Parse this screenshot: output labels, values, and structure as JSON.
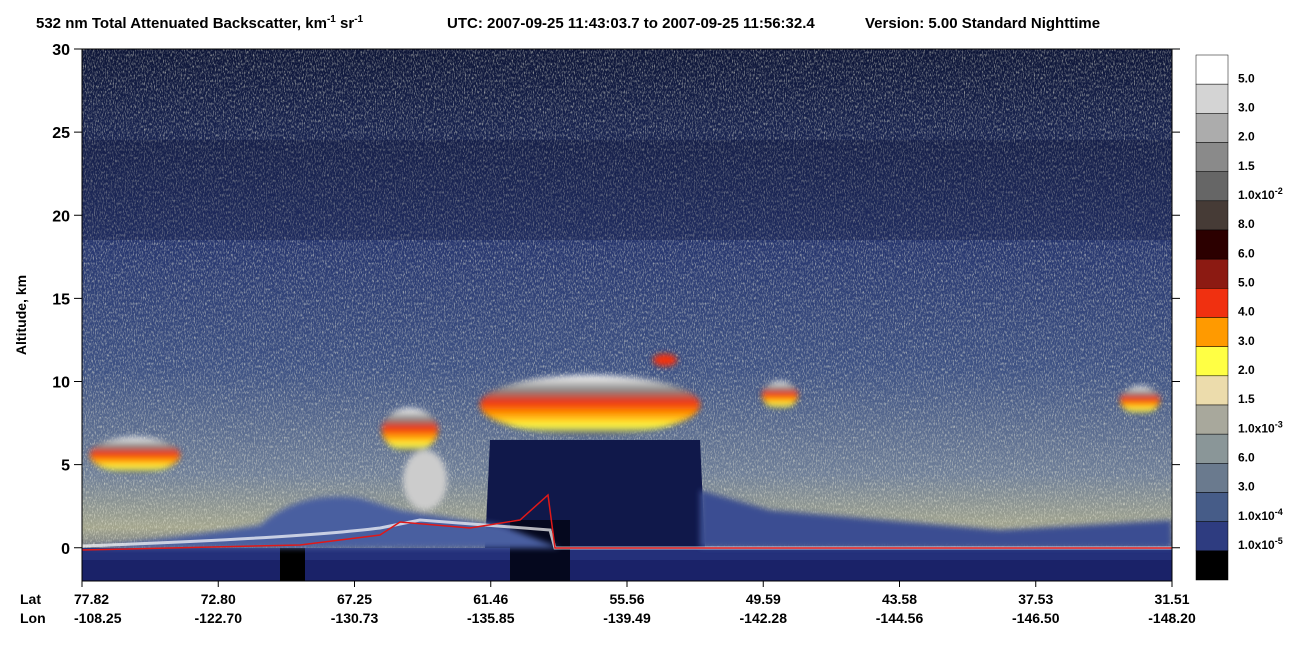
{
  "chart_data": {
    "type": "curtain",
    "title": {
      "part1": "532 nm Total Attenuated Backscatter, km",
      "sup1": "-1",
      "part2": " sr",
      "sup2": "-1",
      "utc": "UTC:  2007-09-25 11:43:03.7  to  2007-09-25 11:56:32.4",
      "version": "Version: 5.00  Standard  Nighttime"
    },
    "y_label": "Altitude, km",
    "ylim": [
      -2,
      30
    ],
    "yticks": [
      0,
      5,
      10,
      15,
      20,
      25,
      30
    ],
    "x_row_labels": [
      "Lat",
      "Lon"
    ],
    "x_ticks": [
      {
        "lat": "77.82",
        "lon": "-108.25"
      },
      {
        "lat": "72.80",
        "lon": "-122.70"
      },
      {
        "lat": "67.25",
        "lon": "-130.73"
      },
      {
        "lat": "61.46",
        "lon": "-135.85"
      },
      {
        "lat": "55.56",
        "lon": "-139.49"
      },
      {
        "lat": "49.59",
        "lon": "-142.28"
      },
      {
        "lat": "43.58",
        "lon": "-144.56"
      },
      {
        "lat": "37.53",
        "lon": "-146.50"
      },
      {
        "lat": "31.51",
        "lon": "-148.20"
      }
    ],
    "colorbar": {
      "colors": [
        "#ffffff",
        "#d4d4d4",
        "#acacac",
        "#8a8a8a",
        "#666666",
        "#463b36",
        "#2c0000",
        "#8c1a12",
        "#f03010",
        "#ff9a00",
        "#ffff44",
        "#ecdcac",
        "#a8a89c",
        "#8a9698",
        "#6a7a8e",
        "#465c88",
        "#2e3c80",
        "#000000"
      ],
      "labels": [
        {
          "text": "5.0"
        },
        {
          "text": "3.0"
        },
        {
          "text": "2.0"
        },
        {
          "text": "1.5"
        },
        {
          "text": "1.0x10",
          "sup": "-2"
        },
        {
          "text": "8.0"
        },
        {
          "text": "6.0"
        },
        {
          "text": "5.0"
        },
        {
          "text": "4.0"
        },
        {
          "text": "3.0"
        },
        {
          "text": "2.0"
        },
        {
          "text": "1.5"
        },
        {
          "text": "1.0x10",
          "sup": "-3"
        },
        {
          "text": "6.0"
        },
        {
          "text": "3.0"
        },
        {
          "text": "1.0x10",
          "sup": "-4"
        },
        {
          "text": "1.0x10",
          "sup": "-5"
        }
      ]
    }
  }
}
